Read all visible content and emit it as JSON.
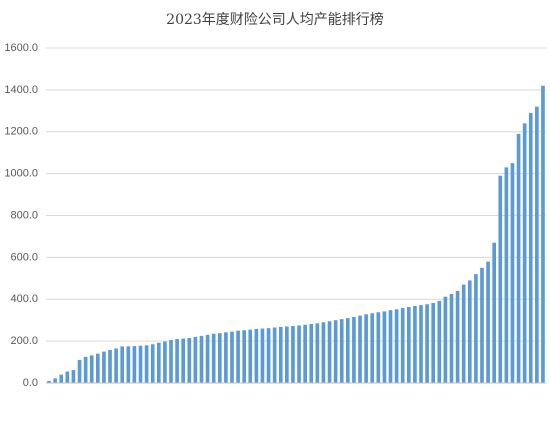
{
  "chart_data": {
    "type": "bar",
    "title": "2023年度财险公司人均产能排行榜",
    "categories": [
      null,
      null,
      null,
      null,
      null,
      null,
      null,
      null,
      null,
      null,
      null,
      null,
      null,
      null,
      null,
      null,
      null,
      null,
      null,
      null,
      null,
      null,
      null,
      null,
      null,
      null,
      null,
      null,
      null,
      null,
      null,
      null,
      null,
      null,
      null,
      null,
      null,
      null,
      null,
      null,
      null,
      null,
      null,
      null,
      null,
      null,
      null,
      null,
      null,
      null,
      null,
      null,
      null,
      null,
      null,
      null,
      null,
      null,
      null,
      null,
      null,
      null,
      null,
      null,
      null,
      null,
      null,
      null,
      null,
      null,
      null,
      null,
      null,
      null,
      null,
      null,
      null,
      null,
      null,
      null,
      null,
      null
    ],
    "values": [
      10,
      22,
      40,
      55,
      62,
      110,
      125,
      132,
      140,
      150,
      158,
      165,
      175,
      175,
      176,
      178,
      180,
      185,
      192,
      198,
      205,
      210,
      212,
      215,
      220,
      225,
      230,
      235,
      238,
      242,
      245,
      250,
      252,
      255,
      258,
      260,
      262,
      265,
      268,
      270,
      272,
      275,
      278,
      282,
      285,
      290,
      295,
      300,
      305,
      310,
      315,
      322,
      328,
      333,
      338,
      342,
      348,
      352,
      358,
      363,
      368,
      372,
      376,
      382,
      392,
      412,
      425,
      440,
      470,
      490,
      520,
      550,
      580,
      670,
      990,
      1030,
      1050,
      1190,
      1240,
      1290,
      1320,
      1420
    ],
    "color": "#5b9bd5",
    "ylim": [
      0,
      1600
    ],
    "yticks": [
      {
        "value": 0,
        "label": "0.0"
      },
      {
        "value": 200,
        "label": "200.0"
      },
      {
        "value": 400,
        "label": "400.0"
      },
      {
        "value": 600,
        "label": "600.0"
      },
      {
        "value": 800,
        "label": "800.0"
      },
      {
        "value": 1000,
        "label": "1000.0"
      },
      {
        "value": 1200,
        "label": "1200.0"
      },
      {
        "value": 1400,
        "label": "1400.0"
      },
      {
        "value": 1600,
        "label": "1600.0"
      }
    ],
    "grid": true
  }
}
